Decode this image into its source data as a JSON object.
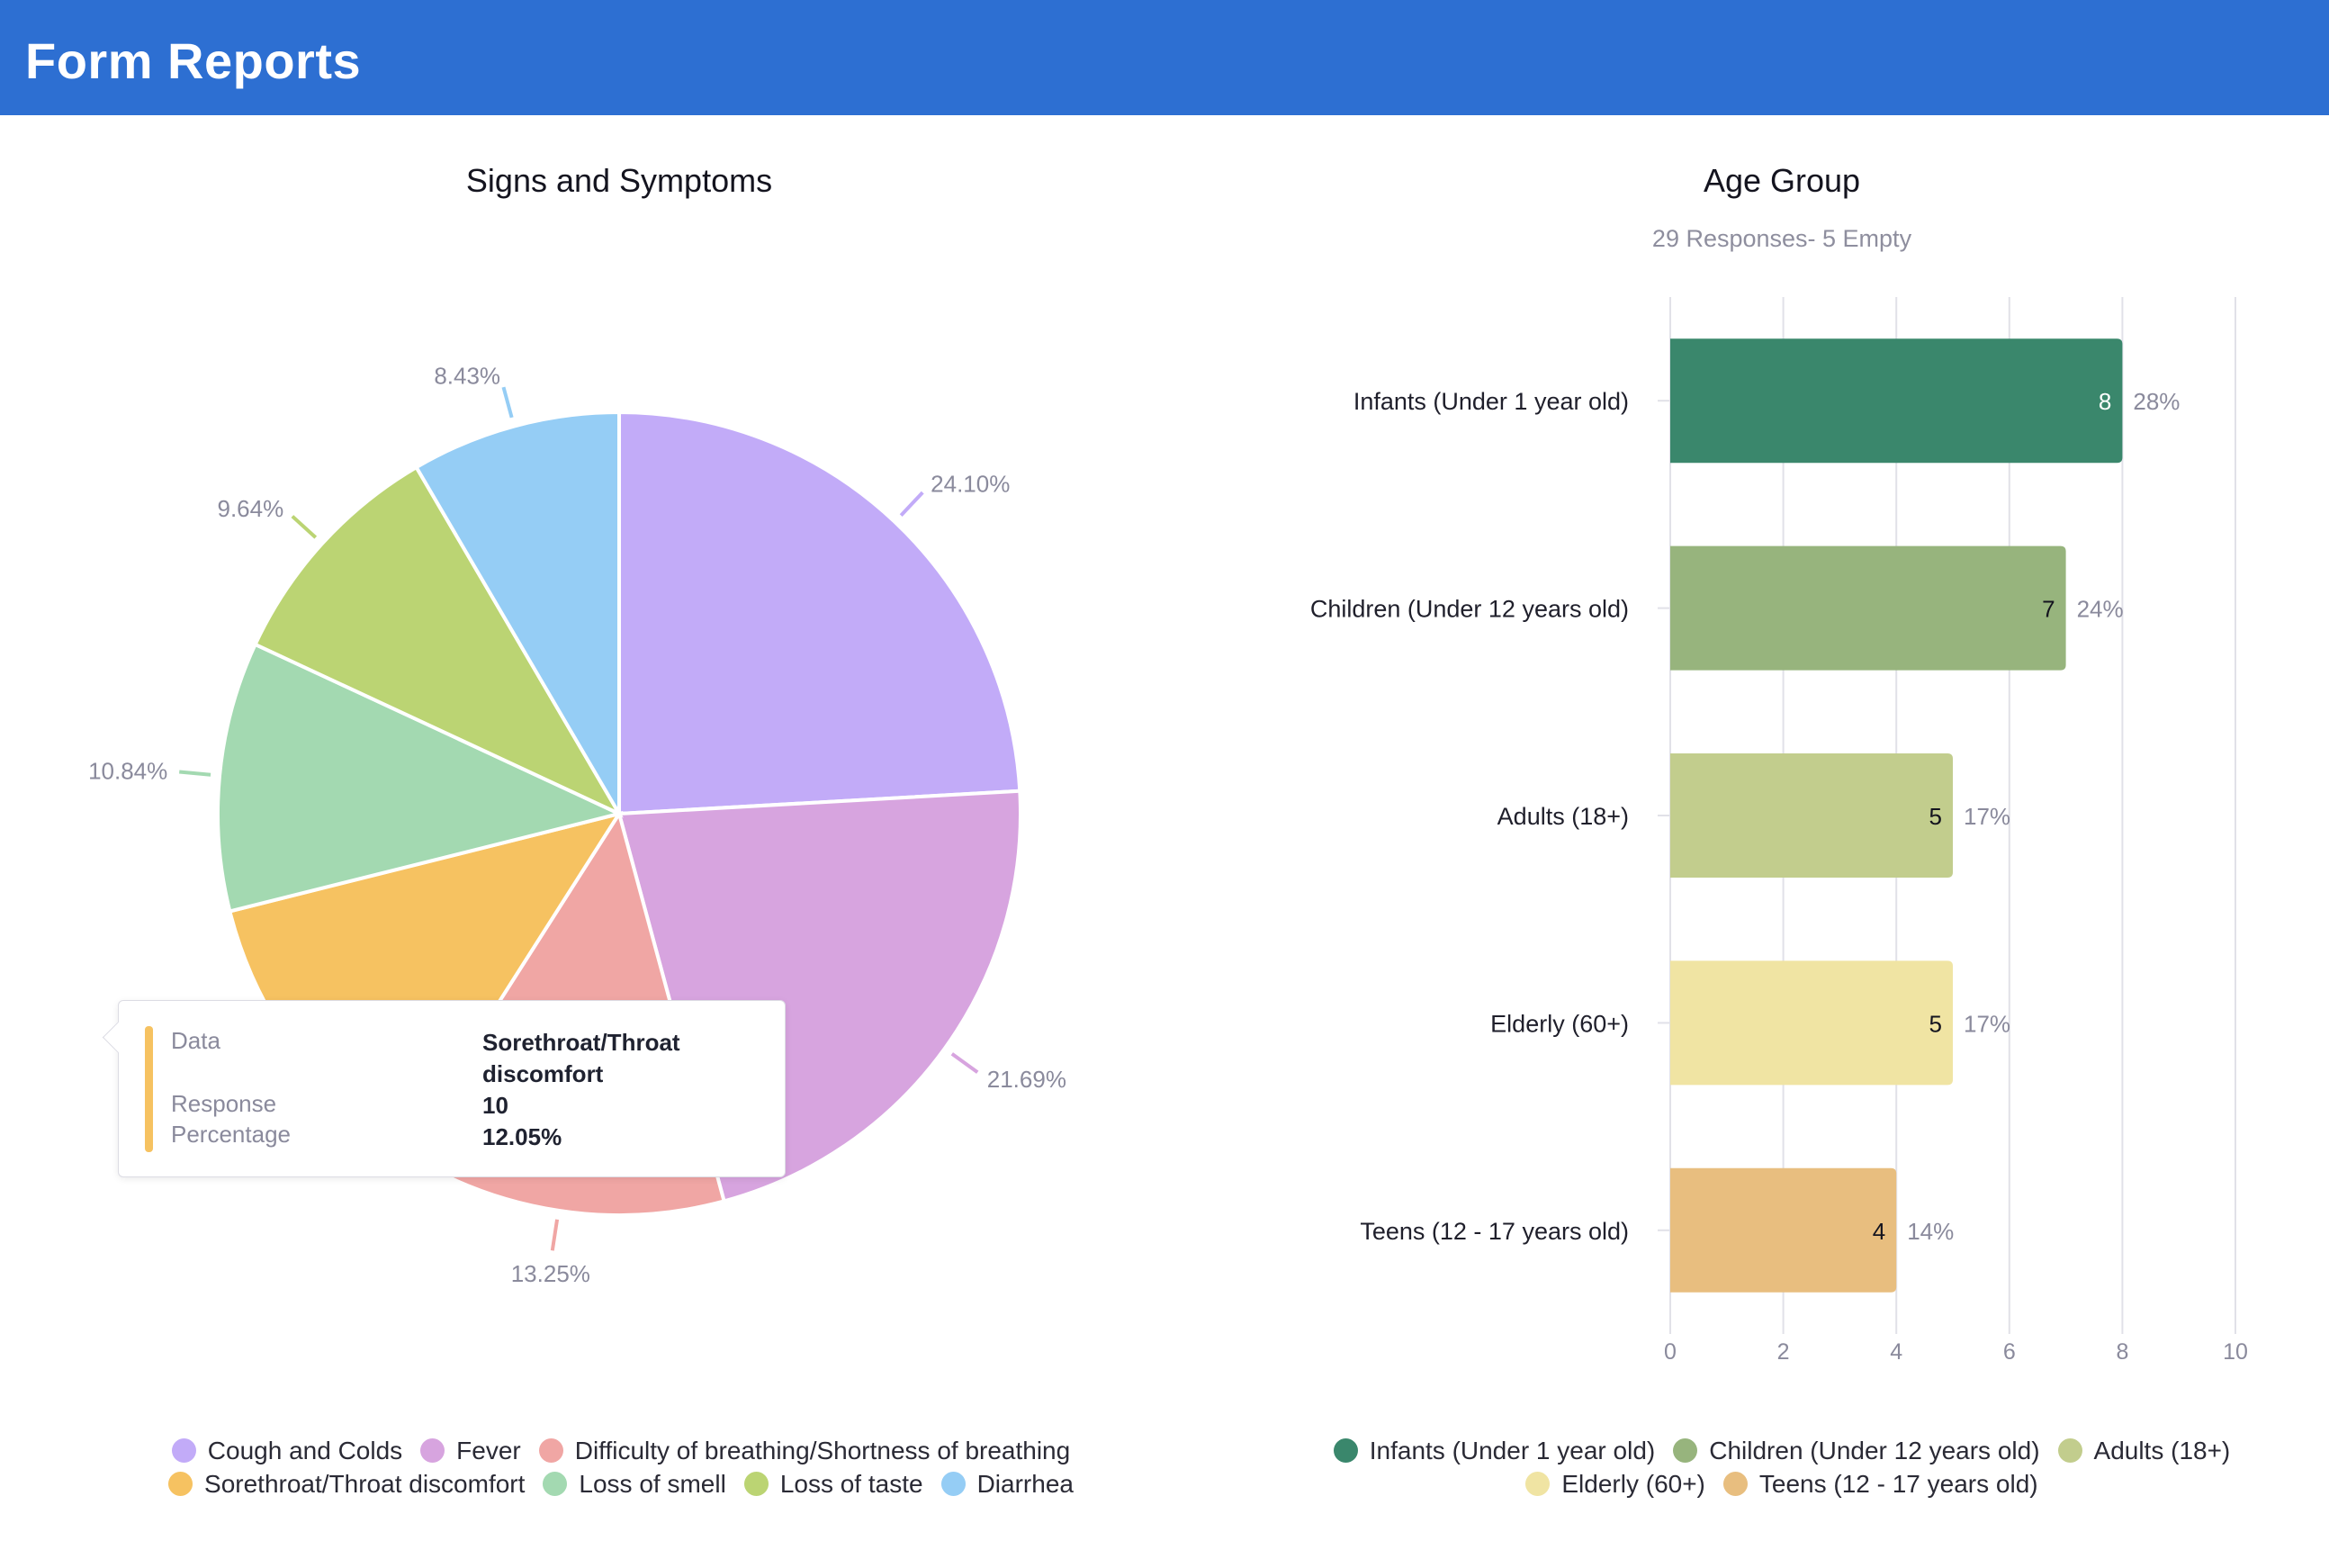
{
  "header": {
    "title": "Form Reports"
  },
  "chart_data": [
    {
      "type": "pie",
      "title": "Signs and Symptoms",
      "slices": [
        {
          "name": "Cough and Colds",
          "value": 24.1,
          "label": "24.10%",
          "color": "#c2abf8"
        },
        {
          "name": "Fever",
          "value": 21.69,
          "label": "21.69%",
          "color": "#d7a4df"
        },
        {
          "name": "Difficulty of breathing/Shortness of breathing",
          "value": 13.25,
          "label": "13.25%",
          "color": "#f0a6a4"
        },
        {
          "name": "Sorethroat/Throat discomfort",
          "value": 12.05,
          "label": "12.05%",
          "color": "#f6c261"
        },
        {
          "name": "Loss of smell",
          "value": 10.84,
          "label": "10.84%",
          "color": "#a3d9b1"
        },
        {
          "name": "Loss of taste",
          "value": 9.64,
          "label": "9.64%",
          "color": "#bbd473"
        },
        {
          "name": "Diarrhea",
          "value": 8.43,
          "label": "8.43%",
          "color": "#95cdf5"
        }
      ],
      "tooltip": {
        "data_label": "Data",
        "data_value": "Sorethroat/Throat discomfort",
        "response_label": "Response",
        "response_value": "10",
        "percentage_label": "Percentage",
        "percentage_value": "12.05%"
      }
    },
    {
      "type": "bar",
      "orientation": "horizontal",
      "title": "Age Group",
      "subtitle": "29 Responses- 5 Empty",
      "categories": [
        "Infants (Under 1 year old)",
        "Children (Under 12 years old)",
        "Adults (18+)",
        "Elderly (60+)",
        "Teens (12 - 17 years old)"
      ],
      "values": [
        8,
        7,
        5,
        5,
        4
      ],
      "percent_labels": [
        "28%",
        "24%",
        "17%",
        "17%",
        "14%"
      ],
      "colors": [
        "#3a876c",
        "#97b47d",
        "#c2cd8d",
        "#f0e4a3",
        "#e8be7f"
      ],
      "xlim": [
        0,
        10
      ],
      "x_ticks": [
        "0",
        "2",
        "4",
        "6",
        "8",
        "10"
      ],
      "grid": true
    }
  ]
}
